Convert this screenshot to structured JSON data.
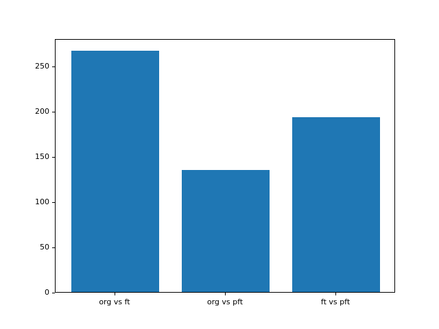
{
  "chart_data": {
    "type": "bar",
    "categories": [
      "org vs ft",
      "org vs pft",
      "ft vs pft"
    ],
    "values": [
      267,
      135,
      193
    ],
    "yticks": [
      0,
      50,
      100,
      150,
      200,
      250
    ],
    "ylim": [
      0,
      280.35
    ],
    "bar_color": "#1f77b4",
    "spine_color": "#000000",
    "text_color": "#000000",
    "background_color": "#ffffff",
    "grid": false,
    "legend": null
  }
}
